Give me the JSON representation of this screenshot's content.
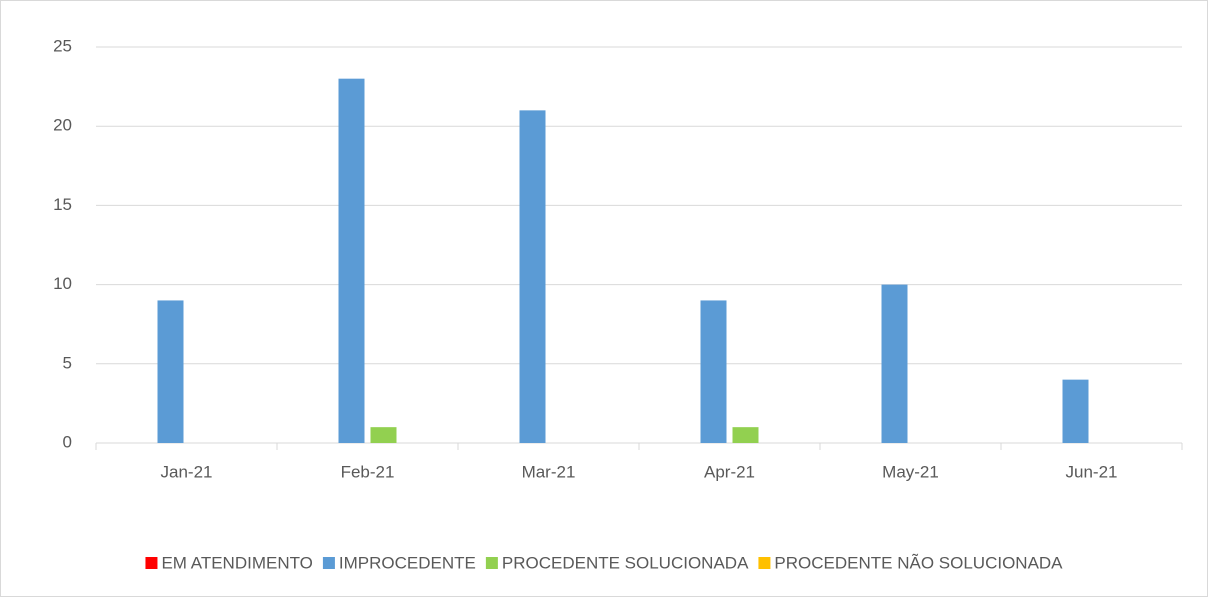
{
  "chart_data": {
    "type": "bar",
    "categories": [
      "Jan-21",
      "Feb-21",
      "Mar-21",
      "Apr-21",
      "May-21",
      "Jun-21"
    ],
    "series": [
      {
        "name": "EM ATENDIMENTO",
        "color": "#ff0000",
        "values": [
          0,
          0,
          0,
          0,
          0,
          0
        ]
      },
      {
        "name": "IMPROCEDENTE",
        "color": "#5b9bd5",
        "values": [
          9,
          23,
          21,
          9,
          10,
          4
        ]
      },
      {
        "name": "PROCEDENTE SOLUCIONADA",
        "color": "#92d050",
        "values": [
          0,
          1,
          0,
          1,
          0,
          0
        ]
      },
      {
        "name": "PROCEDENTE NÃO SOLUCIONADA",
        "color": "#ffc000",
        "values": [
          0,
          0,
          0,
          0,
          0,
          0
        ]
      }
    ],
    "ylim": [
      0,
      25
    ],
    "yticks": [
      0,
      5,
      10,
      15,
      20,
      25
    ],
    "grid": true,
    "legend": "bottom"
  }
}
